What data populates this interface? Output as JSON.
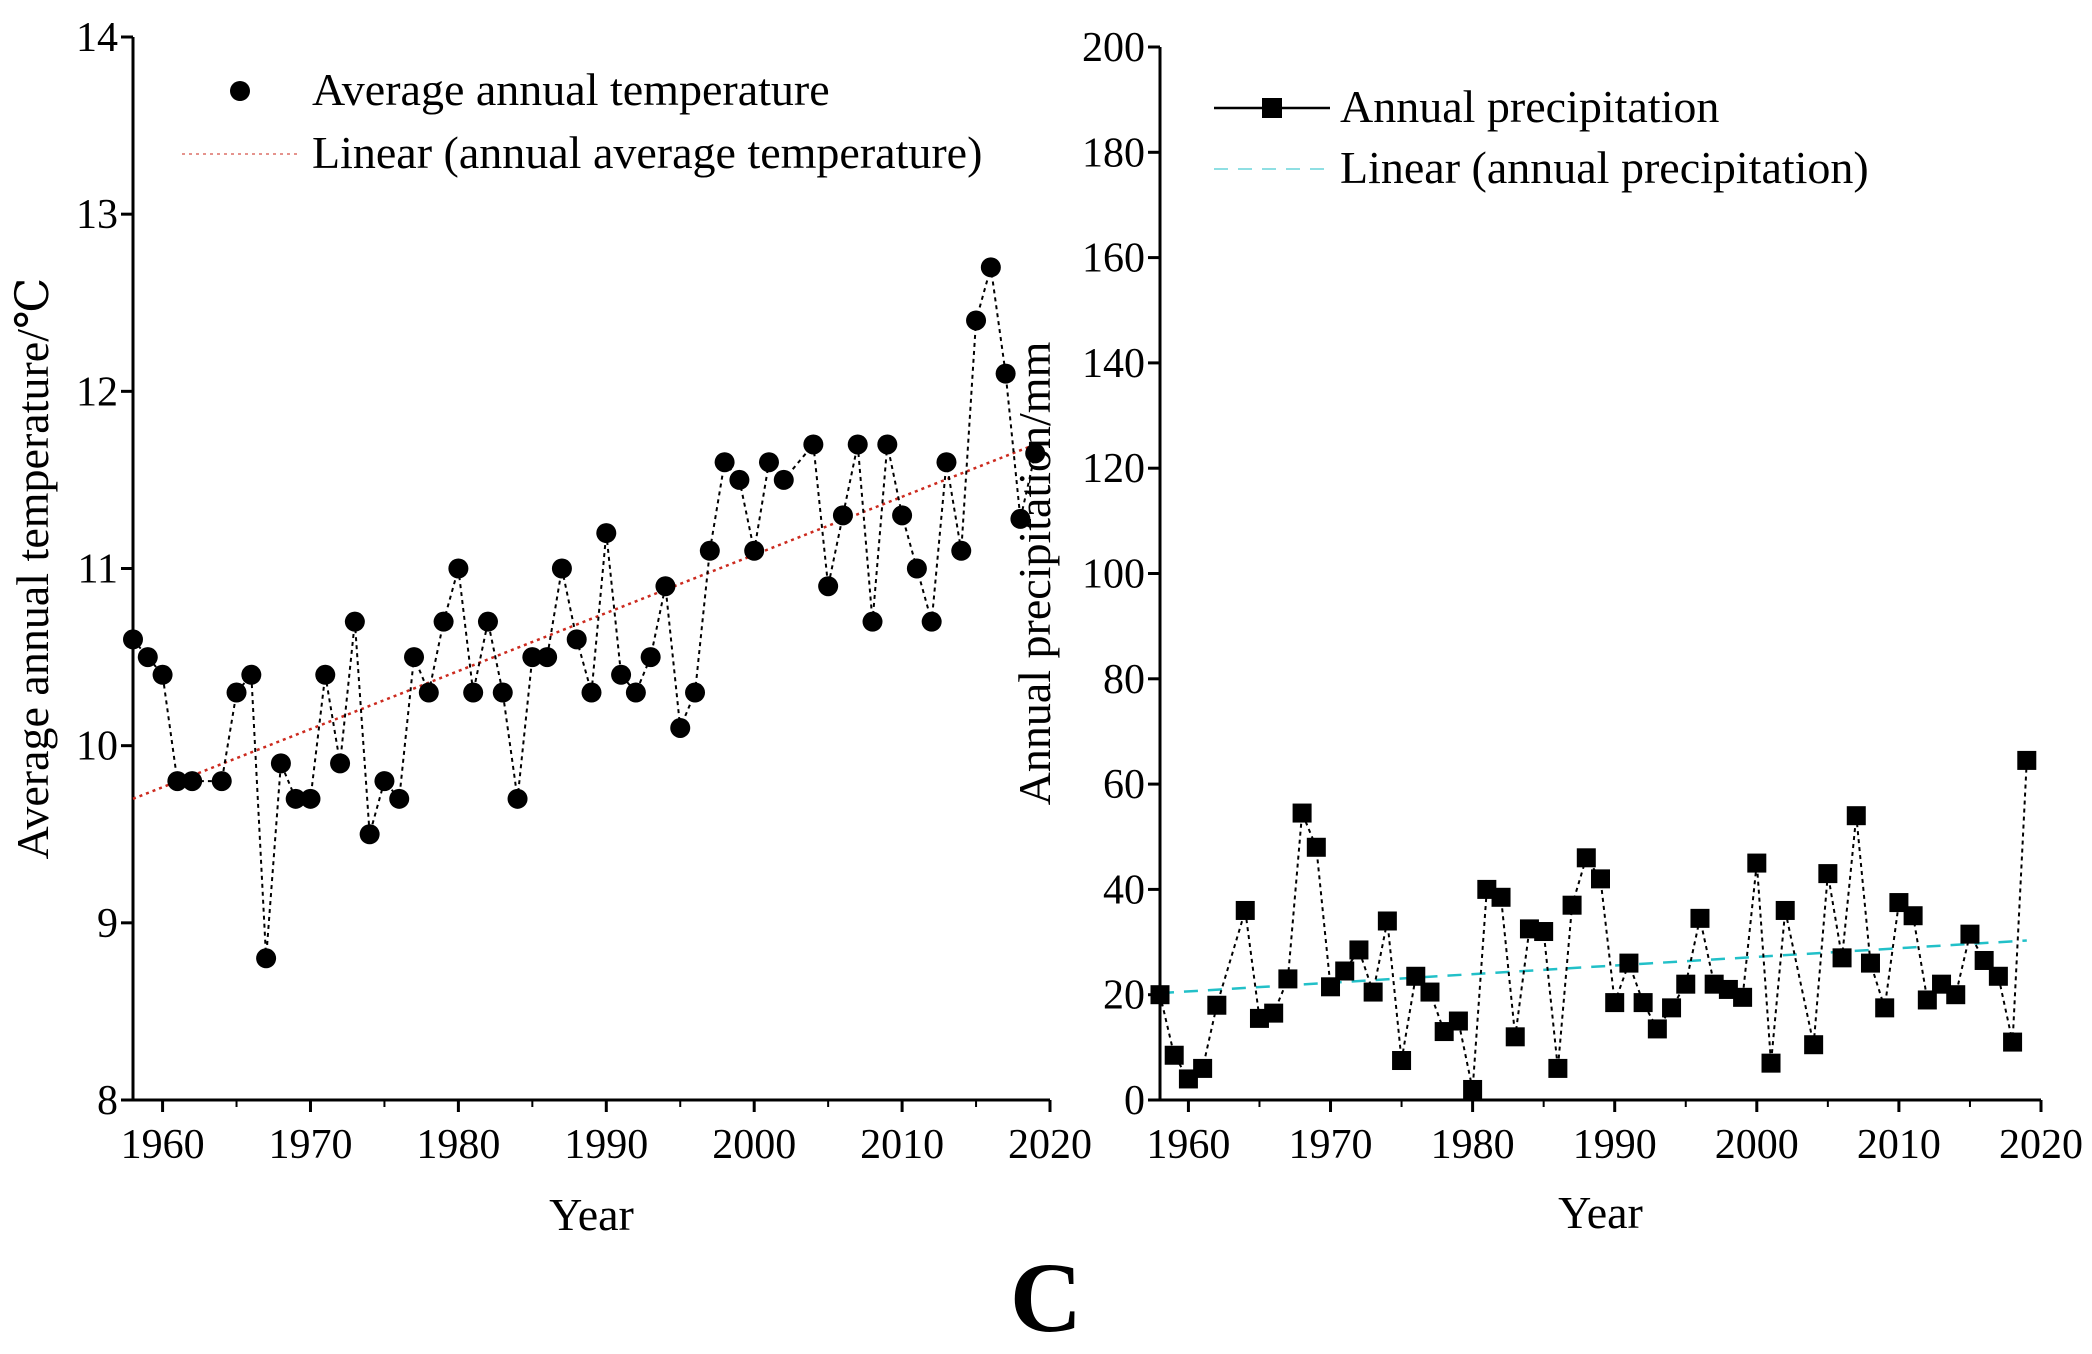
{
  "panel_label": "C",
  "chart_data": [
    {
      "type": "scatter",
      "title": "",
      "xlabel": "Year",
      "ylabel": "Average annual temperature/℃",
      "xlim": [
        1958,
        2020
      ],
      "ylim": [
        8,
        14
      ],
      "xticks": [
        "1960",
        "1970",
        "1980",
        "1990",
        "2000",
        "2010",
        "2020"
      ],
      "yticks": [
        "8",
        "9",
        "10",
        "11",
        "12",
        "13",
        "14"
      ],
      "legend": {
        "position": "top-left",
        "entries": [
          "Average annual temperature",
          "Linear (annual average temperature)"
        ]
      },
      "trend_color": "#cc2a1e",
      "series": [
        {
          "name": "Average annual temperature",
          "x": [
            1958,
            1959,
            1960,
            1961,
            1962,
            1964,
            1965,
            1966,
            1967,
            1968,
            1969,
            1970,
            1971,
            1972,
            1973,
            1974,
            1975,
            1976,
            1977,
            1978,
            1979,
            1980,
            1981,
            1982,
            1983,
            1984,
            1985,
            1986,
            1987,
            1988,
            1989,
            1990,
            1991,
            1992,
            1993,
            1994,
            1995,
            1996,
            1997,
            1998,
            1999,
            2000,
            2001,
            2002,
            2004,
            2005,
            2006,
            2007,
            2008,
            2009,
            2010,
            2011,
            2012,
            2013,
            2014,
            2015,
            2016,
            2017,
            2018,
            2019
          ],
          "values": [
            10.6,
            10.5,
            10.4,
            9.8,
            9.8,
            9.8,
            10.3,
            10.4,
            8.8,
            9.9,
            9.7,
            9.7,
            10.4,
            9.9,
            10.7,
            9.5,
            9.8,
            9.7,
            10.5,
            10.3,
            10.7,
            11.0,
            10.3,
            10.7,
            10.3,
            9.7,
            10.5,
            10.5,
            11.0,
            10.6,
            10.3,
            11.2,
            10.4,
            10.3,
            10.5,
            10.9,
            10.1,
            10.3,
            11.1,
            11.6,
            11.5,
            11.1,
            11.6,
            11.5,
            11.7,
            10.9,
            11.3,
            11.7,
            10.7,
            11.7,
            11.3,
            11.0,
            10.7,
            11.6,
            11.1,
            12.4,
            12.7,
            12.1,
            11.28,
            11.65
          ]
        },
        {
          "name": "Linear (annual average temperature)",
          "x": [
            1958,
            2019
          ],
          "values": [
            9.7,
            11.7
          ]
        }
      ]
    },
    {
      "type": "line",
      "title": "",
      "xlabel": "Year",
      "ylabel": "Annual precipitation/mm",
      "xlim": [
        1958,
        2020
      ],
      "ylim": [
        0,
        200
      ],
      "xticks": [
        "1960",
        "1970",
        "1980",
        "1990",
        "2000",
        "2010",
        "2020"
      ],
      "yticks": [
        "0",
        "20",
        "40",
        "60",
        "80",
        "100",
        "120",
        "140",
        "160",
        "180",
        "200"
      ],
      "legend": {
        "position": "top-left",
        "entries": [
          "Annual precipitation",
          "Linear (annual precipitation)"
        ]
      },
      "trend_color": "#22c0c8",
      "series": [
        {
          "name": "Annual precipitation",
          "x": [
            1958,
            1959,
            1960,
            1961,
            1962,
            1964,
            1965,
            1966,
            1967,
            1968,
            1969,
            1970,
            1971,
            1972,
            1973,
            1974,
            1975,
            1976,
            1977,
            1978,
            1979,
            1980,
            1981,
            1982,
            1983,
            1984,
            1985,
            1986,
            1987,
            1988,
            1989,
            1990,
            1991,
            1992,
            1993,
            1994,
            1995,
            1996,
            1997,
            1998,
            1999,
            2000,
            2001,
            2002,
            2004,
            2005,
            2006,
            2007,
            2008,
            2009,
            2010,
            2011,
            2012,
            2013,
            2014,
            2015,
            2016,
            2017,
            2018,
            2019
          ],
          "values": [
            20,
            8.5,
            4,
            6,
            18,
            36,
            15.5,
            16.5,
            23,
            54.5,
            48,
            21.5,
            24.5,
            28.5,
            20.5,
            34,
            7.5,
            23.5,
            20.5,
            13,
            15,
            2,
            40,
            38.5,
            12,
            32.5,
            32,
            6,
            37,
            46,
            42,
            18.5,
            26,
            18.5,
            13.5,
            17.5,
            22,
            34.5,
            22,
            21,
            19.5,
            45,
            7,
            36,
            10.5,
            43,
            27,
            54,
            26,
            17.5,
            37.5,
            35,
            19,
            22,
            20,
            31.5,
            26.5,
            23.5,
            11,
            64.5
          ]
        },
        {
          "name": "Linear (annual precipitation)",
          "x": [
            1958,
            2019
          ],
          "values": [
            20.3,
            30.3
          ]
        }
      ]
    }
  ]
}
